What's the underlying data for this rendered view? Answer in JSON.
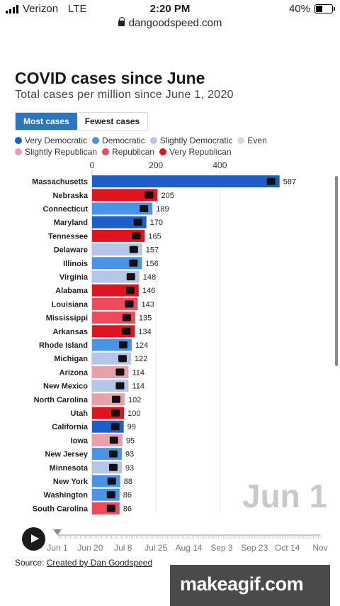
{
  "status_bar": {
    "carrier": "Verizon",
    "network": "LTE",
    "time": "2:20 PM",
    "battery": "40%",
    "battery_level": 0.4
  },
  "browser": {
    "url": "dangoodspeed.com"
  },
  "title": "COVID cases since June",
  "subtitle": "Total cases per million since June 1, 2020",
  "tabs": [
    {
      "label": "Most cases",
      "active": true
    },
    {
      "label": "Fewest cases",
      "active": false
    }
  ],
  "legend": [
    {
      "label": "Very Democratic",
      "color": "#1d5fc6"
    },
    {
      "label": "Democratic",
      "color": "#4b93e6"
    },
    {
      "label": "Slightly Democratic",
      "color": "#b6c6e8"
    },
    {
      "label": "Even",
      "color": "#d9d9d9"
    },
    {
      "label": "Slightly Republican",
      "color": "#e8a0aa"
    },
    {
      "label": "Republican",
      "color": "#ee4a5c"
    },
    {
      "label": "Very Republican",
      "color": "#e0141f"
    }
  ],
  "date_display": "Jun 1",
  "timeline": {
    "labels": [
      "Jun 1",
      "Jun 20",
      "Jul 8",
      "Jul 25",
      "Aug 14",
      "Sep 3",
      "Sep 23",
      "Oct 14",
      "Nov"
    ],
    "progress": 0
  },
  "source": {
    "prefix": "Source: ",
    "link": "Created by Dan Goodspeed"
  },
  "watermark": "makeagif.com",
  "chart_data": {
    "type": "bar",
    "orientation": "horizontal",
    "title": "COVID cases since June",
    "subtitle": "Total cases per million since June 1, 2020",
    "x_ticks": [
      0,
      200,
      400
    ],
    "xlim": [
      0,
      587
    ],
    "grid": true,
    "categories": [
      "Massachusetts",
      "Nebraska",
      "Connecticut",
      "Maryland",
      "Tennessee",
      "Delaware",
      "Illinois",
      "Virginia",
      "Alabama",
      "Louisiana",
      "Mississippi",
      "Arkansas",
      "Rhode Island",
      "Michigan",
      "Arizona",
      "New Mexico",
      "North Carolina",
      "Utah",
      "California",
      "Iowa",
      "New Jersey",
      "Minnesota",
      "New York",
      "Washington",
      "South Carolina"
    ],
    "values": [
      587,
      205,
      189,
      170,
      165,
      157,
      156,
      148,
      146,
      143,
      135,
      134,
      124,
      122,
      114,
      114,
      102,
      100,
      99,
      95,
      93,
      93,
      88,
      86,
      86
    ],
    "leanings": [
      "Very Democratic",
      "Very Republican",
      "Democratic",
      "Very Democratic",
      "Very Republican",
      "Slightly Democratic",
      "Democratic",
      "Slightly Democratic",
      "Very Republican",
      "Republican",
      "Republican",
      "Very Republican",
      "Democratic",
      "Slightly Democratic",
      "Slightly Republican",
      "Slightly Democratic",
      "Slightly Republican",
      "Very Republican",
      "Very Democratic",
      "Slightly Republican",
      "Democratic",
      "Slightly Democratic",
      "Democratic",
      "Democratic",
      "Republican"
    ]
  }
}
